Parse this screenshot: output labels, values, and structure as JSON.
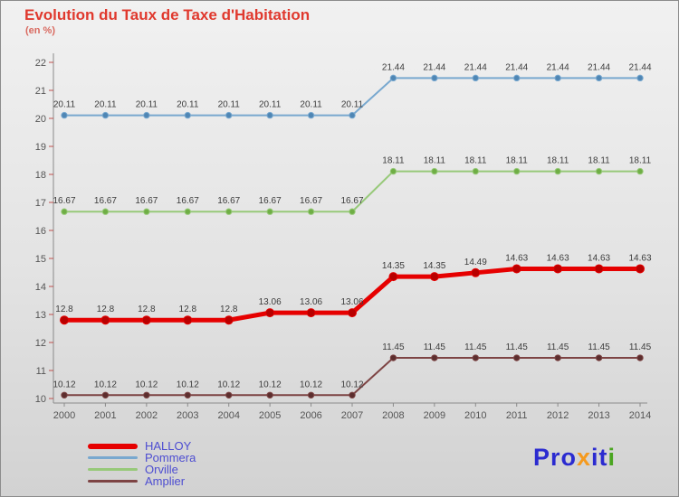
{
  "title": "Evolution du Taux de Taxe d'Habitation",
  "subtitle": "(en %)",
  "colors": {
    "title": "#e0392e",
    "subtitle": "#d96a60",
    "legend_text": "#4d4dd1",
    "axis": "#8a8a8a",
    "y_tick_mark": "#c0504d",
    "logo_blue": "#2b2bd0",
    "logo_orange": "#f59a1e",
    "logo_green": "#4aa520"
  },
  "logo": {
    "part1": "Pro",
    "part2": "x",
    "part3": "it",
    "part4": "i"
  },
  "chart_data": {
    "type": "line",
    "title": "Evolution du Taux de Taxe d'Habitation",
    "subtitle": "(en %)",
    "x": [
      "2000",
      "2001",
      "2002",
      "2003",
      "2004",
      "2005",
      "2006",
      "2007",
      "2008",
      "2009",
      "2010",
      "2011",
      "2012",
      "2013",
      "2014"
    ],
    "ylim": [
      10,
      22
    ],
    "y_ticks": [
      10,
      11,
      12,
      13,
      14,
      15,
      16,
      17,
      18,
      19,
      20,
      21,
      22
    ],
    "grid": false,
    "legend_position": "bottom-left",
    "series": [
      {
        "name": "HALLOY",
        "color": "#e60000",
        "point_color": "#b80000",
        "line_width": 5,
        "values": [
          12.8,
          12.8,
          12.8,
          12.8,
          12.8,
          13.06,
          13.06,
          13.06,
          14.35,
          14.35,
          14.49,
          14.63,
          14.63,
          14.63,
          14.63
        ]
      },
      {
        "name": "Pommera",
        "color": "#78a8cf",
        "point_color": "#4f86b4",
        "line_width": 2,
        "values": [
          20.11,
          20.11,
          20.11,
          20.11,
          20.11,
          20.11,
          20.11,
          20.11,
          21.44,
          21.44,
          21.44,
          21.44,
          21.44,
          21.44,
          21.44
        ]
      },
      {
        "name": "Orville",
        "color": "#97c979",
        "point_color": "#6fae45",
        "line_width": 2,
        "values": [
          16.67,
          16.67,
          16.67,
          16.67,
          16.67,
          16.67,
          16.67,
          16.67,
          18.11,
          18.11,
          18.11,
          18.11,
          18.11,
          18.11,
          18.11
        ]
      },
      {
        "name": "Amplier",
        "color": "#7d4444",
        "point_color": "#5c2e2e",
        "line_width": 2,
        "values": [
          10.12,
          10.12,
          10.12,
          10.12,
          10.12,
          10.12,
          10.12,
          10.12,
          11.45,
          11.45,
          11.45,
          11.45,
          11.45,
          11.45,
          11.45
        ]
      }
    ]
  }
}
